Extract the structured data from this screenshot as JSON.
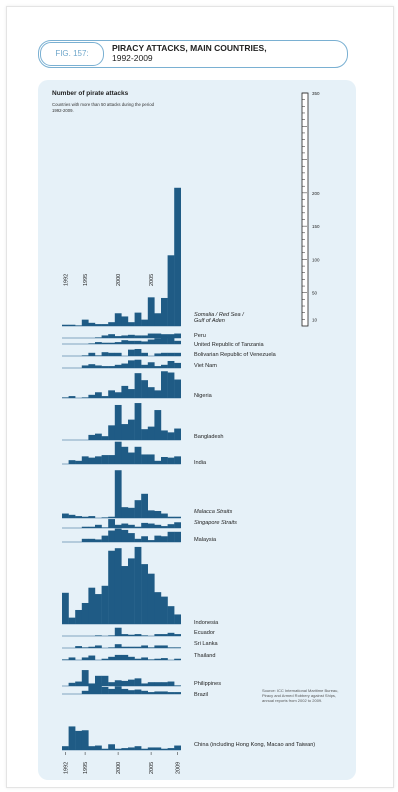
{
  "figure": {
    "number": "FIG. 157:",
    "title_line1": "PIRACY ATTACKS, MAIN COUNTRIES,",
    "title_line2": "1992-2009"
  },
  "chart_data": {
    "type": "bar",
    "title": "PIRACY ATTACKS, MAIN COUNTRIES, 1992-2009",
    "ylabel": "Number of pirate attacks",
    "note": "Countries with more than 50 attacks during the period 1992-2009.",
    "source": "Source: ICC International Maritime Bureau, Piracy and Armed Robbery against Ships, annual reports from 2002 to 2009.",
    "years": [
      1992,
      1993,
      1994,
      1995,
      1996,
      1997,
      1998,
      1999,
      2000,
      2001,
      2002,
      2003,
      2004,
      2005,
      2006,
      2007,
      2008,
      2009
    ],
    "top_axis_ticks": [
      "1992",
      "1995",
      "2000",
      "2005"
    ],
    "bottom_axis_ticks": [
      "1992",
      "1995",
      "2000",
      "2005",
      "2009"
    ],
    "scale_ticks": [
      350,
      200,
      150,
      100,
      50,
      10
    ],
    "series": [
      {
        "name": "Somalia / Red Sea / Gulf of Aden",
        "values": [
          2,
          2,
          1,
          10,
          5,
          3,
          3,
          6,
          20,
          15,
          6,
          21,
          10,
          45,
          20,
          44,
          111,
          217
        ]
      },
      {
        "name": "Peru",
        "values": [
          0,
          0,
          0,
          0,
          0,
          1,
          4,
          6,
          3,
          4,
          5,
          4,
          4,
          7,
          7,
          6,
          6,
          7
        ]
      },
      {
        "name": "United Republic of Tanzania",
        "values": [
          0,
          0,
          0,
          0,
          1,
          3,
          2,
          2,
          3,
          6,
          5,
          5,
          4,
          7,
          9,
          11,
          14,
          5
        ]
      },
      {
        "name": "Bolivarian Republic of Venezuela",
        "values": [
          0,
          0,
          0,
          1,
          5,
          1,
          6,
          5,
          5,
          0,
          10,
          11,
          5,
          0,
          4,
          5,
          5,
          5
        ]
      },
      {
        "name": "Viet Nam",
        "values": [
          0,
          0,
          0,
          4,
          6,
          4,
          3,
          3,
          5,
          7,
          12,
          13,
          5,
          9,
          3,
          5,
          11,
          8
        ]
      },
      {
        "name": "Nigeria",
        "values": [
          1,
          3,
          0,
          1,
          5,
          9,
          3,
          12,
          9,
          19,
          14,
          39,
          28,
          17,
          12,
          42,
          40,
          29
        ]
      },
      {
        "name": "Bangladesh",
        "values": [
          0,
          0,
          0,
          0,
          8,
          10,
          6,
          23,
          55,
          25,
          32,
          58,
          17,
          21,
          47,
          15,
          12,
          18
        ]
      },
      {
        "name": "India",
        "values": [
          0,
          6,
          5,
          12,
          10,
          12,
          14,
          14,
          35,
          27,
          18,
          27,
          15,
          15,
          5,
          11,
          10,
          12
        ]
      },
      {
        "name": "Malacca Straits",
        "values": [
          7,
          5,
          3,
          2,
          3,
          0,
          1,
          2,
          75,
          17,
          16,
          28,
          38,
          12,
          11,
          7,
          2,
          2
        ]
      },
      {
        "name": "Singapore Straits",
        "values": [
          0,
          0,
          0,
          2,
          2,
          5,
          1,
          14,
          5,
          7,
          5,
          2,
          8,
          7,
          5,
          3,
          6,
          9
        ]
      },
      {
        "name": "Malaysia",
        "values": [
          0,
          0,
          0,
          5,
          5,
          4,
          10,
          18,
          21,
          19,
          14,
          5,
          9,
          3,
          10,
          9,
          16,
          16
        ]
      },
      {
        "name": "Indonesia",
        "values": [
          49,
          10,
          22,
          33,
          57,
          47,
          60,
          115,
          119,
          91,
          103,
          121,
          94,
          79,
          50,
          43,
          28,
          15
        ]
      },
      {
        "name": "Ecuador",
        "values": [
          0,
          0,
          0,
          0,
          0,
          1,
          0,
          1,
          13,
          3,
          2,
          3,
          1,
          0,
          3,
          3,
          5,
          3
        ]
      },
      {
        "name": "Sri Lanka",
        "values": [
          0,
          0,
          3,
          1,
          2,
          4,
          0,
          1,
          6,
          2,
          2,
          2,
          4,
          1,
          4,
          4,
          1,
          1
        ]
      },
      {
        "name": "Thailand",
        "values": [
          1,
          4,
          0,
          4,
          7,
          0,
          2,
          5,
          8,
          8,
          5,
          2,
          4,
          1,
          2,
          3,
          0,
          2
        ]
      },
      {
        "name": "Philippines",
        "values": [
          0,
          5,
          7,
          25,
          4,
          16,
          16,
          6,
          9,
          8,
          10,
          12,
          4,
          6,
          6,
          6,
          7,
          1
        ]
      },
      {
        "name": "Brazil",
        "values": [
          0,
          0,
          0,
          5,
          15,
          17,
          11,
          8,
          12,
          8,
          6,
          7,
          5,
          3,
          4,
          4,
          3,
          3
        ]
      },
      {
        "name": "China (including Hong Kong, Macao and Taiwan)",
        "values": [
          6,
          37,
          30,
          31,
          6,
          7,
          2,
          9,
          2,
          3,
          4,
          6,
          2,
          4,
          4,
          2,
          3,
          7
        ]
      }
    ]
  },
  "styles": {
    "bar_color": "#1f5b85",
    "panel_color": "#e6f1f8",
    "accent": "#7ab0d2"
  }
}
